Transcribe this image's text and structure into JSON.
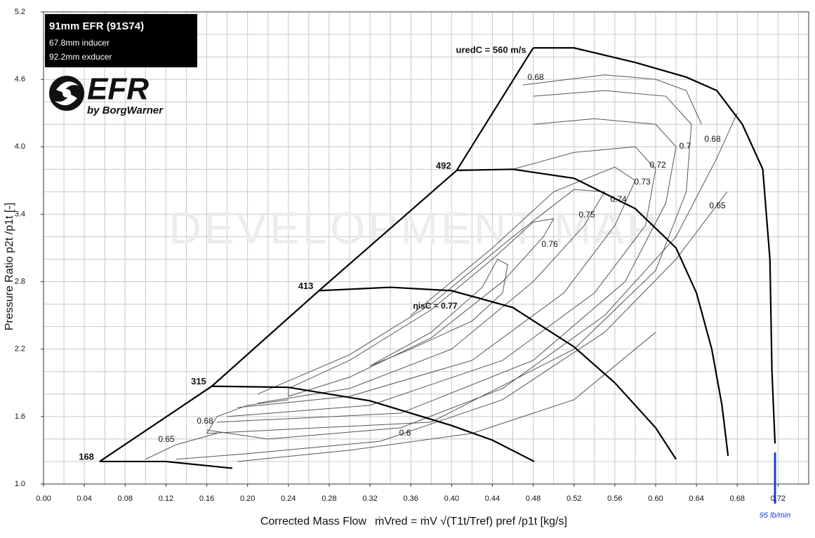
{
  "chart_data": {
    "type": "line",
    "header": {
      "title": "91mm EFR  (91S74)",
      "lines": [
        "67.8mm inducer",
        "92.2mm exducer"
      ]
    },
    "logo": {
      "text": "EFR",
      "sub": "by BorgWarner"
    },
    "watermark": "DEVELOPMENT MAP",
    "y_label": "Pressure Ratio   p2t /p1t [-]",
    "x_label": "Corrected Mass Flow",
    "x_formula": "ṁVred = ṁV √(T1t/Tref) pref /p1t   [kg/s]",
    "xlim": [
      0,
      0.75
    ],
    "ylim": [
      1.0,
      5.2
    ],
    "xticks": [
      {
        "value": 0,
        "label": "0.00"
      },
      0.04,
      0.08,
      0.12,
      0.16,
      {
        "value": 0.2,
        "label": "0.20"
      },
      0.24,
      0.28,
      0.32,
      0.36,
      {
        "value": 0.4,
        "label": "0.40"
      },
      0.44,
      0.48,
      0.52,
      0.56,
      {
        "value": 0.6,
        "label": "0.60"
      },
      0.64,
      0.68,
      0.72
    ],
    "yticks": [
      {
        "value": 1.0,
        "label": "1.0"
      },
      1.6,
      2.2,
      2.8,
      3.4,
      {
        "value": 4.0,
        "label": "4.0"
      },
      4.6,
      5.2
    ],
    "minor_xgrid": [
      0.02,
      0.06,
      0.1,
      0.14,
      0.18,
      0.22,
      0.26,
      0.3,
      0.34,
      0.38,
      0.42,
      0.46,
      0.5,
      0.54,
      0.58,
      0.62,
      0.66,
      0.7,
      0.74
    ],
    "minor_ygrid": [
      1.2,
      1.4,
      1.8,
      2.0,
      2.4,
      2.6,
      3.0,
      3.2,
      3.6,
      3.8,
      4.2,
      4.4,
      4.8,
      5.0
    ],
    "grid": true,
    "surge_line": {
      "x": [
        0.055,
        0.165,
        0.27,
        0.405,
        0.48
      ],
      "values": [
        1.2,
        1.87,
        2.72,
        3.79,
        4.88
      ]
    },
    "speed_lines": [
      {
        "name": "168",
        "x": [
          0.055,
          0.12,
          0.185
        ],
        "values": [
          1.2,
          1.2,
          1.14
        ]
      },
      {
        "name": "315",
        "x": [
          0.165,
          0.24,
          0.32,
          0.4,
          0.44,
          0.481
        ],
        "values": [
          1.87,
          1.86,
          1.74,
          1.52,
          1.39,
          1.2
        ]
      },
      {
        "name": "413",
        "x": [
          0.27,
          0.34,
          0.4,
          0.46,
          0.52,
          0.56,
          0.6,
          0.62
        ],
        "values": [
          2.72,
          2.75,
          2.72,
          2.57,
          2.22,
          1.9,
          1.5,
          1.22
        ]
      },
      {
        "name": "492",
        "x": [
          0.405,
          0.46,
          0.52,
          0.58,
          0.62,
          0.64,
          0.655,
          0.665,
          0.671
        ],
        "values": [
          3.79,
          3.8,
          3.72,
          3.45,
          3.1,
          2.7,
          2.2,
          1.7,
          1.25
        ]
      },
      {
        "name": "uredC = 560 m/s",
        "x": [
          0.48,
          0.52,
          0.58,
          0.63,
          0.66,
          0.685,
          0.705,
          0.712,
          0.714,
          0.717
        ],
        "values": [
          4.88,
          4.88,
          4.75,
          4.62,
          4.5,
          4.2,
          3.8,
          3.0,
          2.0,
          1.36
        ]
      }
    ],
    "efficiency_lines": [
      {
        "name": "ηisC = 0.77",
        "x": [
          0.32,
          0.38,
          0.43,
          0.445,
          0.455,
          0.45,
          0.42,
          0.36,
          0.32
        ],
        "values": [
          2.05,
          2.35,
          2.75,
          3.0,
          2.95,
          2.7,
          2.45,
          2.2,
          2.05
        ]
      },
      {
        "name": "0.76",
        "x": [
          0.24,
          0.3,
          0.38,
          0.45,
          0.49,
          0.5,
          0.48,
          0.44,
          0.38,
          0.3,
          0.24,
          0.24
        ],
        "values": [
          1.78,
          1.95,
          2.3,
          2.8,
          3.2,
          3.36,
          3.33,
          3.0,
          2.55,
          2.1,
          1.85,
          1.78
        ]
      },
      {
        "name": "0.75",
        "x": [
          0.21,
          0.3,
          0.4,
          0.48,
          0.53,
          0.55,
          0.52,
          0.46,
          0.38,
          0.3,
          0.21
        ],
        "values": [
          1.72,
          1.85,
          2.2,
          2.8,
          3.3,
          3.6,
          3.62,
          3.2,
          2.6,
          2.15,
          1.8
        ]
      },
      {
        "name": "0.74",
        "x": [
          0.19,
          0.3,
          0.42,
          0.51,
          0.56,
          0.58,
          0.56,
          0.5,
          0.44,
          0.36
        ],
        "values": [
          1.68,
          1.78,
          2.1,
          2.7,
          3.3,
          3.7,
          3.82,
          3.6,
          3.1,
          2.5
        ]
      },
      {
        "name": "0.73",
        "x": [
          0.18,
          0.32,
          0.45,
          0.54,
          0.59,
          0.6,
          0.58,
          0.52,
          0.46
        ],
        "values": [
          1.6,
          1.7,
          2.1,
          2.7,
          3.3,
          3.8,
          4.0,
          3.95,
          3.8
        ]
      },
      {
        "name": "0.72",
        "x": [
          0.17,
          0.35,
          0.48,
          0.57,
          0.61,
          0.62,
          0.6,
          0.54,
          0.48
        ],
        "values": [
          1.55,
          1.63,
          2.1,
          2.8,
          3.5,
          4.0,
          4.2,
          4.25,
          4.2
        ]
      },
      {
        "name": "0.7",
        "x": [
          0.16,
          0.38,
          0.52,
          0.6,
          0.63,
          0.635,
          0.61,
          0.55,
          0.48
        ],
        "values": [
          1.45,
          1.55,
          2.2,
          2.9,
          3.6,
          4.2,
          4.45,
          4.5,
          4.45
        ]
      },
      {
        "name": "0.68",
        "x": [
          0.47,
          0.55,
          0.6,
          0.63,
          0.645
        ],
        "values": [
          4.55,
          4.64,
          4.6,
          4.5,
          4.2
        ]
      },
      {
        "name": "0.68",
        "x": [
          0.68,
          0.66,
          0.62,
          0.55,
          0.45,
          0.35,
          0.22,
          0.16
        ],
        "values": [
          4.3,
          3.9,
          3.2,
          2.5,
          1.85,
          1.5,
          1.4,
          1.48
        ]
      },
      {
        "name": "0.68",
        "x": [
          0.16,
          0.17,
          0.2,
          0.24
        ],
        "values": [
          1.45,
          1.6,
          1.7,
          1.75
        ]
      },
      {
        "name": "0.65",
        "x": [
          0.67,
          0.62,
          0.55,
          0.45,
          0.33,
          0.2,
          0.13
        ],
        "values": [
          3.6,
          3.0,
          2.35,
          1.75,
          1.38,
          1.27,
          1.22
        ]
      },
      {
        "name": "0.65",
        "x": [
          0.1,
          0.13,
          0.17
        ],
        "values": [
          1.22,
          1.35,
          1.45
        ]
      },
      {
        "name": "0.6",
        "x": [
          0.19,
          0.3,
          0.42,
          0.52,
          0.6
        ],
        "values": [
          1.2,
          1.3,
          1.45,
          1.75,
          2.35
        ]
      }
    ],
    "flow_marker": {
      "label": "95 lb/min",
      "x": 0.717,
      "top": 1.28,
      "color": "#1a3fd6"
    }
  }
}
